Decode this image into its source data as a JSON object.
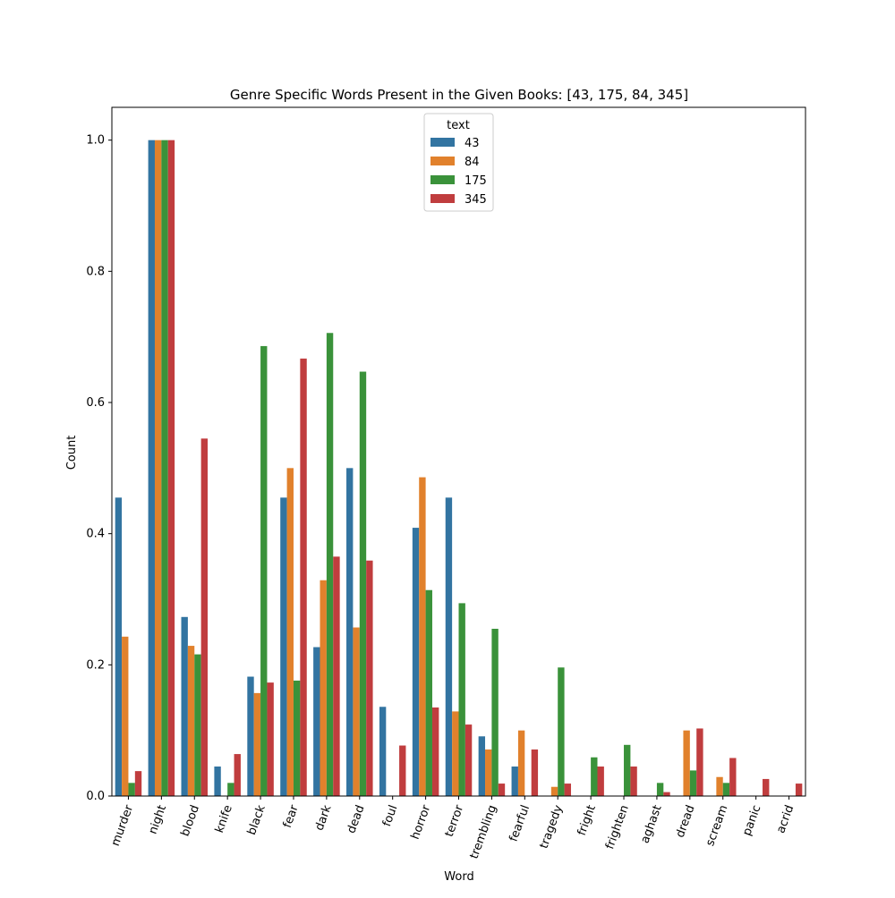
{
  "chart_data": {
    "type": "bar",
    "title": "Genre Specific Words Present in the Given Books: [43, 175, 84, 345]",
    "xlabel": "Word",
    "ylabel": "Count",
    "ylim": [
      0,
      1.05
    ],
    "yticks": [
      "0.0",
      "0.2",
      "0.4",
      "0.6",
      "0.8",
      "1.0"
    ],
    "grid": false,
    "legend": {
      "title": "text",
      "placement": "top-center"
    },
    "categories": [
      "murder",
      "night",
      "blood",
      "knife",
      "black",
      "fear",
      "dark",
      "dead",
      "foul",
      "horror",
      "terror",
      "trembling",
      "fearful",
      "tragedy",
      "fright",
      "frighten",
      "aghast",
      "dread",
      "scream",
      "panic",
      "acrid"
    ],
    "series": [
      {
        "name": "43",
        "color": "#3274a1",
        "values": [
          0.455,
          1.0,
          0.273,
          0.045,
          0.182,
          0.455,
          0.227,
          0.5,
          0.136,
          0.409,
          0.455,
          0.091,
          0.045,
          0,
          0,
          0,
          0,
          0,
          0,
          0,
          0
        ]
      },
      {
        "name": "84",
        "color": "#e1812c",
        "values": [
          0.243,
          1.0,
          0.229,
          0,
          0.157,
          0.5,
          0.329,
          0.257,
          0,
          0.486,
          0.129,
          0.071,
          0.1,
          0.014,
          0,
          0,
          0,
          0.1,
          0.029,
          0,
          0
        ]
      },
      {
        "name": "175",
        "color": "#3a923a",
        "values": [
          0.02,
          1.0,
          0.216,
          0.02,
          0.686,
          0.176,
          0.706,
          0.647,
          0,
          0.314,
          0.294,
          0.255,
          0,
          0.196,
          0.059,
          0.078,
          0.02,
          0.039,
          0.02,
          0,
          0
        ]
      },
      {
        "name": "345",
        "color": "#c03d3e",
        "values": [
          0.038,
          1.0,
          0.545,
          0.064,
          0.173,
          0.667,
          0.365,
          0.359,
          0.077,
          0.135,
          0.109,
          0.019,
          0.071,
          0.019,
          0.045,
          0.045,
          0.006,
          0.103,
          0.058,
          0.026,
          0.019
        ]
      }
    ]
  }
}
